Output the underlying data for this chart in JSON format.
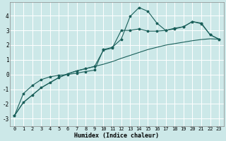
{
  "xlabel": "Humidex (Indice chaleur)",
  "bg_color": "#cce8e8",
  "grid_color": "#ffffff",
  "line_color": "#1a5f5a",
  "xlim": [
    -0.5,
    23.5
  ],
  "ylim": [
    -3.5,
    4.9
  ],
  "yticks": [
    -3,
    -2,
    -1,
    0,
    1,
    2,
    3,
    4
  ],
  "xticks": [
    0,
    1,
    2,
    3,
    4,
    5,
    6,
    7,
    8,
    9,
    10,
    11,
    12,
    13,
    14,
    15,
    16,
    17,
    18,
    19,
    20,
    21,
    22,
    23
  ],
  "series1_x": [
    0,
    1,
    2,
    3,
    4,
    5,
    6,
    7,
    8,
    9,
    10,
    11,
    12,
    13,
    14,
    15,
    16,
    17,
    18,
    19,
    20,
    21,
    22,
    23
  ],
  "series1_y": [
    -2.8,
    -1.3,
    -0.75,
    -0.35,
    -0.15,
    -0.05,
    0.0,
    0.1,
    0.2,
    0.3,
    1.7,
    1.85,
    2.4,
    3.95,
    4.55,
    4.3,
    3.5,
    3.0,
    3.1,
    3.25,
    3.6,
    3.5,
    2.7,
    2.4
  ],
  "series2_x": [
    0,
    1,
    2,
    3,
    4,
    5,
    6,
    7,
    8,
    9,
    10,
    11,
    12,
    13,
    14,
    15,
    16,
    17,
    18,
    19,
    20,
    21,
    22,
    23
  ],
  "series2_y": [
    -2.8,
    -1.9,
    -1.4,
    -0.9,
    -0.55,
    -0.2,
    0.05,
    0.25,
    0.4,
    0.55,
    0.7,
    0.88,
    1.1,
    1.3,
    1.5,
    1.7,
    1.85,
    2.0,
    2.1,
    2.2,
    2.3,
    2.38,
    2.43,
    2.4
  ],
  "series3_x": [
    0,
    1,
    2,
    3,
    4,
    5,
    6,
    7,
    8,
    9,
    10,
    11,
    12,
    13,
    14,
    15,
    16,
    17,
    18,
    19,
    20,
    21,
    22,
    23
  ],
  "series3_y": [
    -2.8,
    -1.9,
    -1.4,
    -0.9,
    -0.55,
    -0.2,
    0.05,
    0.25,
    0.4,
    0.55,
    1.65,
    1.8,
    3.0,
    3.0,
    3.1,
    2.95,
    2.95,
    3.0,
    3.15,
    3.25,
    3.6,
    3.45,
    2.7,
    2.4
  ]
}
